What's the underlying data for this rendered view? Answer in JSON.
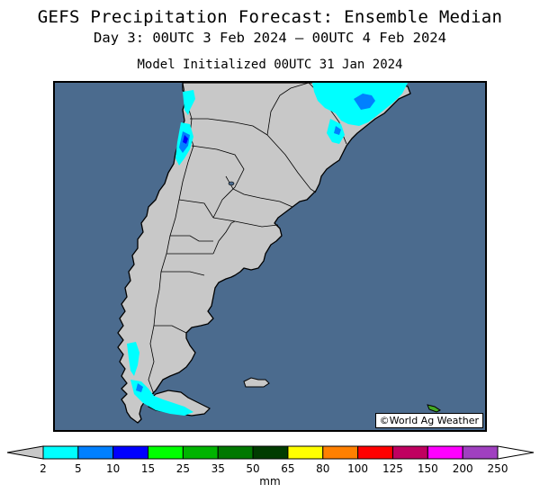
{
  "header": {
    "title": "GEFS Precipitation Forecast: Ensemble Median",
    "subtitle": "Day 3: 00UTC 3 Feb 2024 — 00UTC 4 Feb 2024",
    "initialized": "Model Initialized 00UTC 31 Jan 2024"
  },
  "map": {
    "region": "Southern South America",
    "credit": "©World Ag Weather",
    "colors": {
      "ocean": "#4b6b8e",
      "land": "#c8c8c8",
      "border": "#000000"
    }
  },
  "legend": {
    "unit": "mm",
    "ticks": [
      "2",
      "5",
      "10",
      "15",
      "25",
      "35",
      "50",
      "65",
      "80",
      "100",
      "125",
      "150",
      "200",
      "250"
    ],
    "colors": [
      "#00ffff",
      "#0080ff",
      "#0000ff",
      "#00ff00",
      "#00b400",
      "#007800",
      "#003c00",
      "#ffff00",
      "#ff8000",
      "#ff0000",
      "#c00060",
      "#ff00ff",
      "#a040c0"
    ],
    "under_color": "#c8c8c8",
    "over_color": "#ffffff"
  }
}
